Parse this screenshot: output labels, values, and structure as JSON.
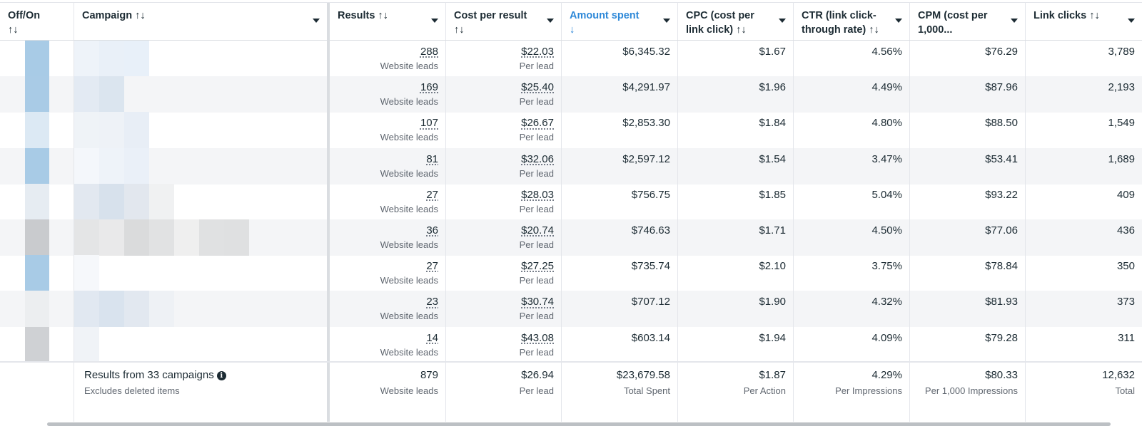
{
  "table": {
    "columns": [
      {
        "label": "Off/On",
        "sort": "↑↓",
        "has_menu": false
      },
      {
        "label": "Campaign",
        "sort": "↑↓",
        "has_menu": true
      },
      {
        "label": "Results",
        "sort": "↑↓",
        "has_menu": true
      },
      {
        "label": "Cost per result",
        "sort": "↑↓",
        "has_menu": true
      },
      {
        "label": "Amount spent",
        "sort": "↓",
        "has_menu": true,
        "active": true
      },
      {
        "label": "CPC (cost per link click)",
        "sort": "↑↓",
        "has_menu": true
      },
      {
        "label": "CTR (link click-through rate)",
        "sort": "↑↓",
        "has_menu": true
      },
      {
        "label": "CPM (cost per 1,000...",
        "sort": "",
        "has_menu": true
      },
      {
        "label": "Link clicks",
        "sort": "↑↓",
        "has_menu": true
      }
    ],
    "rows": [
      {
        "results": "288",
        "results_sub": "Website leads",
        "cost_per_result": "$22.03",
        "cost_sub": "Per lead",
        "amount_spent": "$6,345.32",
        "cpc": "$1.67",
        "ctr": "4.56%",
        "cpm": "$76.29",
        "link_clicks": "3,789"
      },
      {
        "results": "169",
        "results_sub": "Website leads",
        "cost_per_result": "$25.40",
        "cost_sub": "Per lead",
        "amount_spent": "$4,291.97",
        "cpc": "$1.96",
        "ctr": "4.49%",
        "cpm": "$87.96",
        "link_clicks": "2,193"
      },
      {
        "results": "107",
        "results_sub": "Website leads",
        "cost_per_result": "$26.67",
        "cost_sub": "Per lead",
        "amount_spent": "$2,853.30",
        "cpc": "$1.84",
        "ctr": "4.80%",
        "cpm": "$88.50",
        "link_clicks": "1,549"
      },
      {
        "results": "81",
        "results_sub": "Website leads",
        "cost_per_result": "$32.06",
        "cost_sub": "Per lead",
        "amount_spent": "$2,597.12",
        "cpc": "$1.54",
        "ctr": "3.47%",
        "cpm": "$53.41",
        "link_clicks": "1,689"
      },
      {
        "results": "27",
        "results_sub": "Website leads",
        "cost_per_result": "$28.03",
        "cost_sub": "Per lead",
        "amount_spent": "$756.75",
        "cpc": "$1.85",
        "ctr": "5.04%",
        "cpm": "$93.22",
        "link_clicks": "409"
      },
      {
        "results": "36",
        "results_sub": "Website leads",
        "cost_per_result": "$20.74",
        "cost_sub": "Per lead",
        "amount_spent": "$746.63",
        "cpc": "$1.71",
        "ctr": "4.50%",
        "cpm": "$77.06",
        "link_clicks": "436"
      },
      {
        "results": "27",
        "results_sub": "Website leads",
        "cost_per_result": "$27.25",
        "cost_sub": "Per lead",
        "amount_spent": "$735.74",
        "cpc": "$2.10",
        "ctr": "3.75%",
        "cpm": "$78.84",
        "link_clicks": "350"
      },
      {
        "results": "23",
        "results_sub": "Website leads",
        "cost_per_result": "$30.74",
        "cost_sub": "Per lead",
        "amount_spent": "$707.12",
        "cpc": "$1.90",
        "ctr": "4.32%",
        "cpm": "$81.93",
        "link_clicks": "373"
      },
      {
        "results": "14",
        "results_sub": "Website leads",
        "cost_per_result": "$43.08",
        "cost_sub": "Per lead",
        "amount_spent": "$603.14",
        "cpc": "$1.94",
        "ctr": "4.09%",
        "cpm": "$79.28",
        "link_clicks": "311"
      }
    ],
    "toggle_colors": [
      "#a8cbe6",
      "#a9cbe6",
      "#dce9f4",
      "#a8cbe6",
      "#e6ecf2",
      "#c9cbce",
      "#a8cbe6",
      "#eceef0",
      "#cfd1d4",
      "#dbe8f3"
    ],
    "footer": {
      "title": "Results from 33 campaigns",
      "subtitle": "Excludes deleted items",
      "info_icon": "i",
      "results": "879",
      "results_sub": "Website leads",
      "cost_per_result": "$26.94",
      "cost_sub": "Per lead",
      "amount_spent": "$23,679.58",
      "amount_sub": "Total Spent",
      "cpc": "$1.87",
      "cpc_sub": "Per Action",
      "ctr": "4.29%",
      "ctr_sub": "Per Impressions",
      "cpm": "$80.33",
      "cpm_sub": "Per 1,000 Impressions",
      "link_clicks": "12,632",
      "link_clicks_sub": "Total"
    },
    "colors": {
      "accent": "#2d88d8",
      "text": "#1c2b33",
      "muted": "#606770",
      "row_alt": "#f4f5f7"
    }
  }
}
